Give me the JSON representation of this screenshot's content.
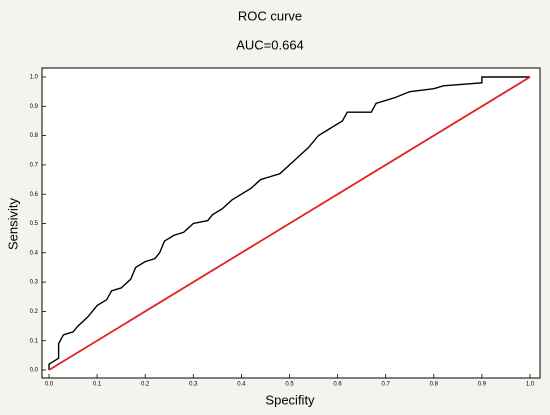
{
  "chart_data": {
    "type": "line",
    "title": "ROC curve",
    "subtitle": "AUC=0.664",
    "x_label": "Specifity",
    "y_label": "Sensivity",
    "xlim": [
      0,
      1
    ],
    "ylim": [
      0,
      1
    ],
    "xticks": [
      {
        "value": 0,
        "label": "0.0"
      },
      0.1,
      0.2,
      0.3,
      0.4,
      0.5,
      0.6,
      0.7,
      0.8,
      0.9,
      {
        "value": 1,
        "label": "1.0"
      }
    ],
    "yticks": [
      {
        "value": 0,
        "label": "0.0"
      },
      0.1,
      0.2,
      0.3,
      0.4,
      0.5,
      0.6,
      0.7,
      0.8,
      0.9,
      {
        "value": 1,
        "label": "1.0"
      }
    ],
    "grid": false,
    "series": [
      {
        "color": "#000000",
        "x": [
          0,
          0,
          0.01,
          0.02,
          0.02,
          0.03,
          0.05,
          0.06,
          0.08,
          0.1,
          0.12,
          0.13,
          0.15,
          0.17,
          0.18,
          0.2,
          0.22,
          0.23,
          0.24,
          0.26,
          0.28,
          0.3,
          0.33,
          0.34,
          0.36,
          0.38,
          0.4,
          0.42,
          0.44,
          0.46,
          0.48,
          0.5,
          0.52,
          0.54,
          0.56,
          0.58,
          0.6,
          0.61,
          0.62,
          0.67,
          0.68,
          0.72,
          0.75,
          0.8,
          0.82,
          0.9,
          0.9,
          1
        ],
        "values": [
          0,
          0.02,
          0.03,
          0.04,
          0.09,
          0.12,
          0.13,
          0.15,
          0.18,
          0.22,
          0.24,
          0.27,
          0.28,
          0.31,
          0.35,
          0.37,
          0.38,
          0.4,
          0.44,
          0.46,
          0.47,
          0.5,
          0.51,
          0.53,
          0.55,
          0.58,
          0.6,
          0.62,
          0.65,
          0.66,
          0.67,
          0.7,
          0.73,
          0.76,
          0.8,
          0.82,
          0.84,
          0.85,
          0.88,
          0.88,
          0.91,
          0.93,
          0.95,
          0.96,
          0.97,
          0.98,
          1,
          1
        ]
      },
      {
        "color": "#e02020",
        "x": [
          0,
          1
        ],
        "values": [
          0,
          1
        ]
      }
    ]
  }
}
